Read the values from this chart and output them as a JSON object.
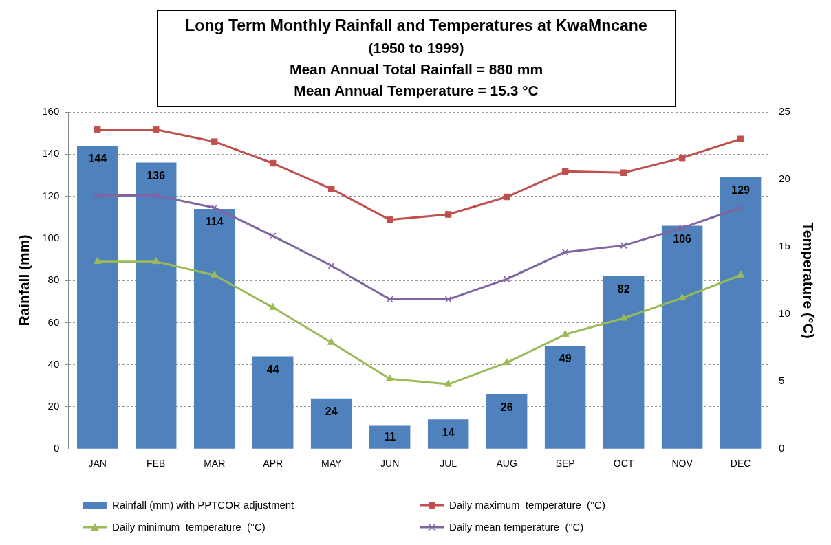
{
  "chart_data": {
    "type": "bar",
    "title": "Long Term Monthly Rainfall and Temperatures at KwaMncane",
    "subtitle": "(1950 to 1999)",
    "annotations": [
      "Mean Annual Total Rainfall = 880 mm",
      "Mean Annual Temperature = 15.3 °C"
    ],
    "ylabel": "Rainfall (mm)",
    "y2label": "Temperature (°C)",
    "categories": [
      "JAN",
      "FEB",
      "MAR",
      "APR",
      "MAY",
      "JUN",
      "JUL",
      "AUG",
      "SEP",
      "OCT",
      "NOV",
      "DEC"
    ],
    "series": [
      {
        "name": "Rainfall (mm) with PPTCOR adjustment",
        "color": "#4f81bd",
        "values": [
          144,
          136,
          114,
          44,
          24,
          11,
          14,
          26,
          49,
          82,
          106,
          129
        ],
        "value_labels": [
          "144",
          "136",
          "114",
          "44",
          "24",
          "11",
          "14",
          "26",
          "49",
          "82",
          "106",
          "129"
        ]
      },
      {
        "name": "Daily maximum  temperature  (°C)",
        "type": "line",
        "axis": "y2",
        "marker": "square",
        "color": "#c0504d",
        "values": [
          23.7,
          23.7,
          22.8,
          21.2,
          19.3,
          17.0,
          17.4,
          18.7,
          20.6,
          20.5,
          21.6,
          23.0
        ]
      },
      {
        "name": "Daily minimum  temperature  (°C)",
        "type": "line",
        "axis": "y2",
        "marker": "triangle",
        "color": "#9bbb59",
        "values": [
          13.9,
          13.9,
          12.9,
          10.5,
          7.9,
          5.2,
          4.8,
          6.4,
          8.5,
          9.7,
          11.2,
          12.9
        ]
      },
      {
        "name": "Daily mean temperature  (°C)",
        "type": "line",
        "axis": "y2",
        "marker": "cross",
        "color": "#8064a2",
        "values": [
          18.8,
          18.8,
          17.9,
          15.8,
          13.6,
          11.1,
          11.1,
          12.6,
          14.6,
          15.1,
          16.4,
          17.9
        ]
      }
    ],
    "ylim": [
      0,
      160
    ],
    "yticks": [
      0,
      20,
      40,
      60,
      80,
      100,
      120,
      140,
      160
    ],
    "y2lim": [
      0,
      25
    ],
    "y2ticks": [
      0,
      5,
      10,
      15,
      20,
      25
    ],
    "grid": "y",
    "legend": "bottom",
    "line_style": "solid"
  }
}
